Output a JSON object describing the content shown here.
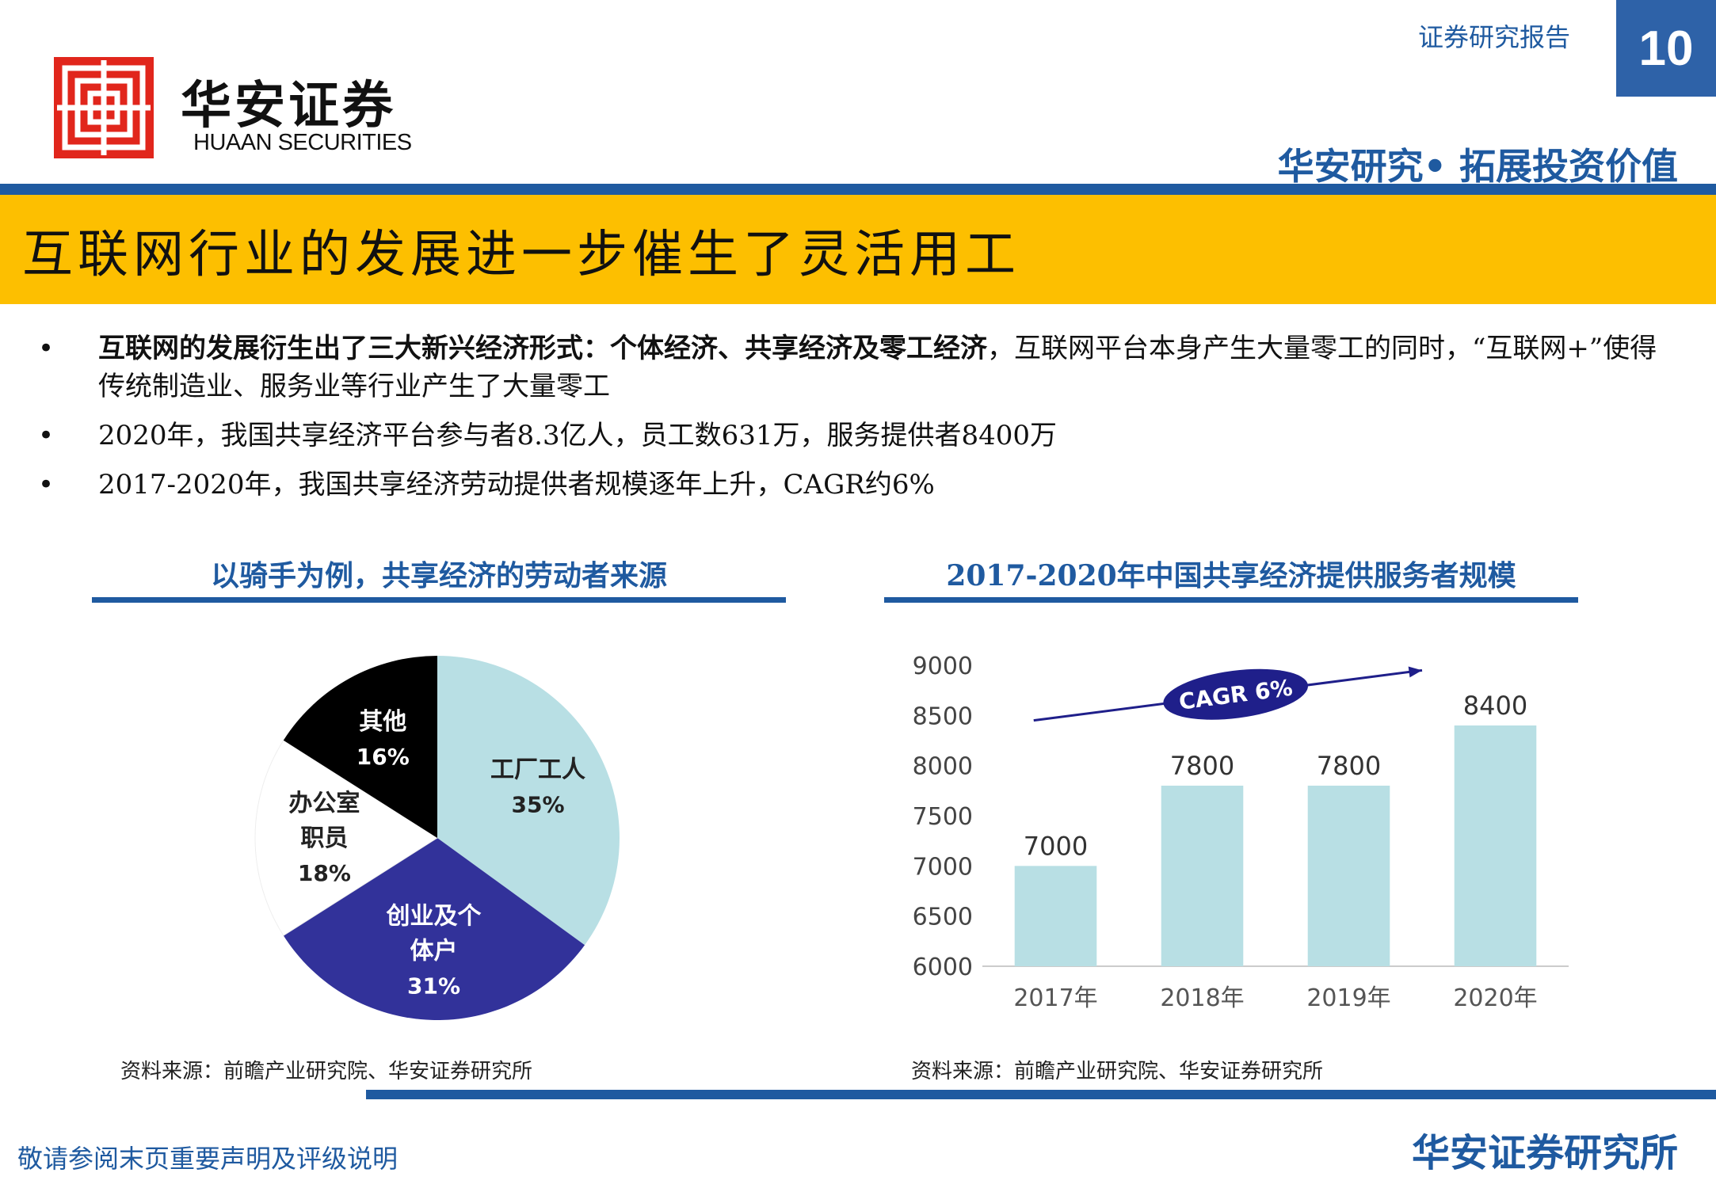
{
  "header": {
    "logo_cn": "华安证券",
    "logo_en": "HUAAN SECURITIES",
    "report_type": "证券研究报告",
    "page_number": "10",
    "slogan": "华安研究• 拓展投资价值"
  },
  "title": "互联网行业的发展进一步催生了灵活用工",
  "bullets": [
    {
      "bold": "互联网的发展衍生出了三大新兴经济形式：个体经济、共享经济及零工经济",
      "text": "，互联网平台本身产生大量零工的同时，“互联网+”使得传统制造业、服务业等行业产生了大量零工"
    },
    {
      "bold": "",
      "text": "2020年，我国共享经济平台参与者8.3亿人，员工数631万，服务提供者8400万"
    },
    {
      "bold": "",
      "text": "2017-2020年，我国共享经济劳动提供者规模逐年上升，CAGR约6%"
    }
  ],
  "left_section": {
    "title": "以骑手为例，共享经济的劳动者来源",
    "source": "资料来源：前瞻产业研究院、华安证券研究所"
  },
  "right_section": {
    "title": "2017-2020年中国共享经济提供服务者规模",
    "source": "资料来源：前瞻产业研究院、华安证券研究所"
  },
  "chart_data": [
    {
      "type": "pie",
      "slices": [
        {
          "label": "工厂工人",
          "value": 35,
          "value_label": "35%",
          "color": "#b8dfe4"
        },
        {
          "label": "创业及个体户",
          "label_lines": [
            "创业及个",
            "体户"
          ],
          "value": 31,
          "value_label": "31%",
          "color": "#32329a"
        },
        {
          "label": "办公室职员",
          "label_lines": [
            "办公室",
            "职员"
          ],
          "value": 18,
          "value_label": "18%",
          "color": "#ffffff"
        },
        {
          "label": "其他",
          "value": 16,
          "value_label": "16%",
          "color": "#000000"
        }
      ]
    },
    {
      "type": "bar",
      "categories": [
        "2017年",
        "2018年",
        "2019年",
        "2020年"
      ],
      "values": [
        7000,
        7800,
        7800,
        8400
      ],
      "ylim": [
        6000,
        9000
      ],
      "yticks": [
        "6000",
        "6500",
        "7000",
        "7500",
        "8000",
        "8500",
        "9000"
      ],
      "bar_color": "#b8dfe4",
      "annotation": "CAGR 6%",
      "annotation_color": "#1f1f8a"
    }
  ],
  "footer": {
    "disclaimer": "敬请参阅末页重要声明及评级说明",
    "org": "华安证券研究所"
  }
}
